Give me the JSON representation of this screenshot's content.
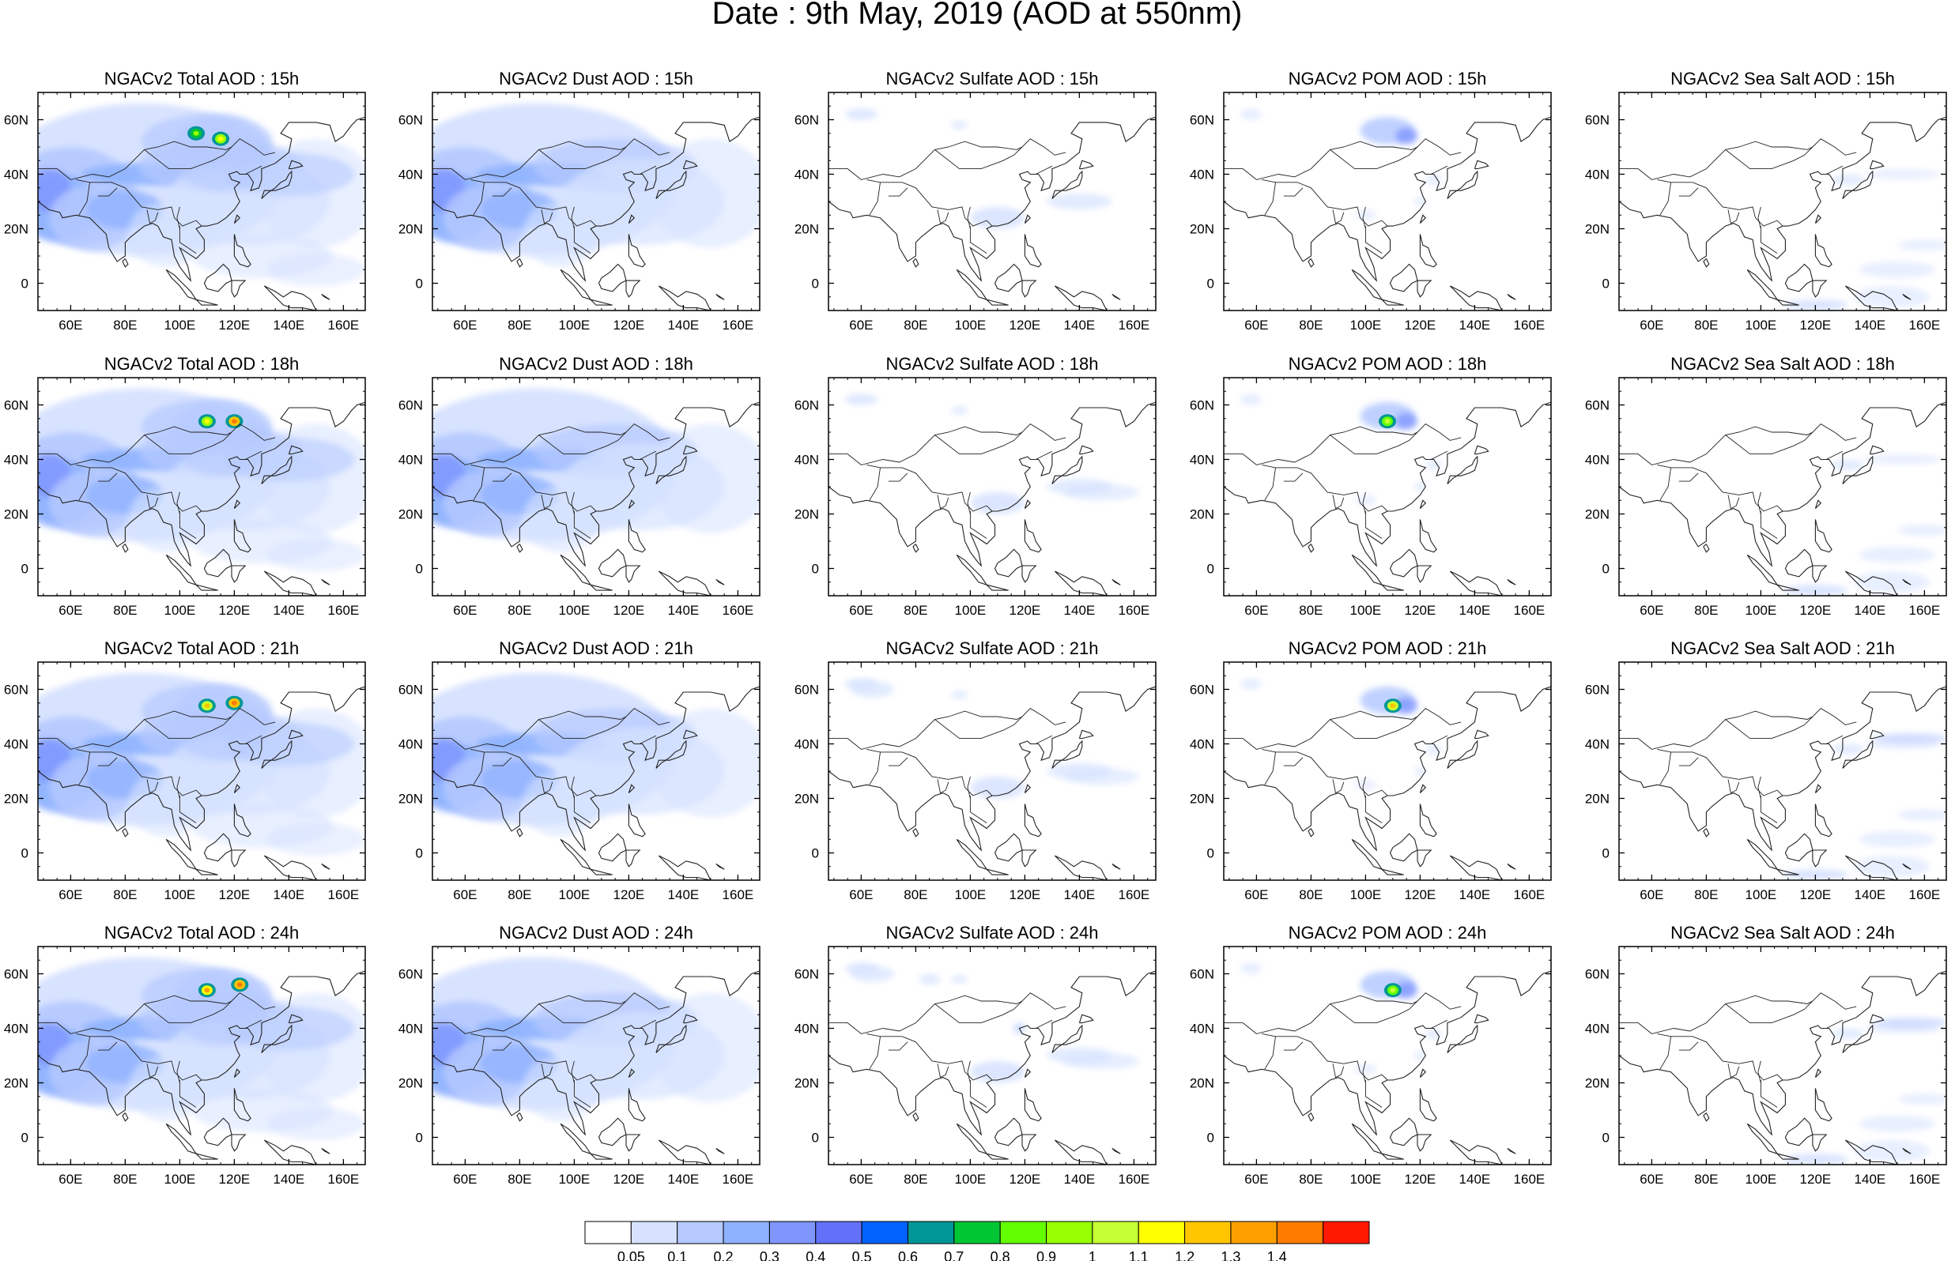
{
  "title": "Date : 9th May, 2019 (AOD at 550nm)",
  "rows": [
    "15h",
    "18h",
    "21h",
    "24h"
  ],
  "panels": [
    [
      "NGACv2 Total AOD : 15h",
      "NGACv2 Dust AOD : 15h",
      "NGACv2 Sulfate AOD : 15h",
      "NGACv2 POM AOD : 15h",
      "NGACv2 Sea Salt AOD : 15h"
    ],
    [
      "NGACv2 Total AOD : 18h",
      "NGACv2 Dust AOD : 18h",
      "NGACv2 Sulfate AOD : 18h",
      "NGACv2 POM AOD : 18h",
      "NGACv2 Sea Salt AOD : 18h"
    ],
    [
      "NGACv2 Total AOD : 21h",
      "NGACv2 Dust AOD : 21h",
      "NGACv2 Sulfate AOD : 21h",
      "NGACv2 POM AOD : 21h",
      "NGACv2 Sea Salt AOD : 21h"
    ],
    [
      "NGACv2 Total AOD : 24h",
      "NGACv2 Dust AOD : 24h",
      "NGACv2 Sulfate AOD : 24h",
      "NGACv2 POM AOD : 24h",
      "NGACv2 Sea Salt  AOD : 24h"
    ]
  ],
  "chart_data": {
    "type": "heatmap",
    "variables": [
      "Total",
      "Dust",
      "Sulfate",
      "POM",
      "Sea Salt"
    ],
    "x_ticks": [
      "60E",
      "80E",
      "100E",
      "120E",
      "140E",
      "160E"
    ],
    "x_tick_values": [
      60,
      80,
      100,
      120,
      140,
      160
    ],
    "y_ticks": [
      "60N",
      "40N",
      "20N",
      "0"
    ],
    "y_tick_values": [
      60,
      40,
      20,
      0
    ],
    "xlim": [
      48,
      168
    ],
    "ylim": [
      -10,
      70
    ],
    "colorbar": {
      "levels": [
        "0.05",
        "0.1",
        "0.2",
        "0.3",
        "0.4",
        "0.5",
        "0.6",
        "0.7",
        "0.8",
        "0.9",
        "1",
        "1.1",
        "1.2",
        "1.3",
        "1.4"
      ],
      "colors": [
        "#ffffff",
        "#d6e2ff",
        "#b5c9ff",
        "#8eb2ff",
        "#7f96ff",
        "#6370f8",
        "#0063ff",
        "#009696",
        "#00c633",
        "#63ff00",
        "#96ff00",
        "#c6ff33",
        "#ffff00",
        "#ffc600",
        "#ffa000",
        "#ff7c00",
        "#ff1900"
      ]
    },
    "hotspots": [
      {
        "panel": "Total 15h",
        "lon": 106,
        "lat": 55,
        "aod": 0.9
      },
      {
        "panel": "Total 15h",
        "lon": 115,
        "lat": 53,
        "aod": 1.1
      },
      {
        "panel": "Total 18h",
        "lon": 110,
        "lat": 54,
        "aod": 1.1
      },
      {
        "panel": "Total 18h",
        "lon": 120,
        "lat": 54,
        "aod": 1.4
      },
      {
        "panel": "Total 21h",
        "lon": 110,
        "lat": 54,
        "aod": 1.2
      },
      {
        "panel": "Total 21h",
        "lon": 120,
        "lat": 55,
        "aod": 1.4
      },
      {
        "panel": "Total 24h",
        "lon": 110,
        "lat": 54,
        "aod": 1.3
      },
      {
        "panel": "Total 24h",
        "lon": 122,
        "lat": 56,
        "aod": 1.4
      },
      {
        "panel": "POM 18h",
        "lon": 108,
        "lat": 54,
        "aod": 1.0
      },
      {
        "panel": "POM 21h",
        "lon": 110,
        "lat": 54,
        "aod": 1.2
      },
      {
        "panel": "POM 24h",
        "lon": 110,
        "lat": 54,
        "aod": 1.0
      }
    ]
  }
}
